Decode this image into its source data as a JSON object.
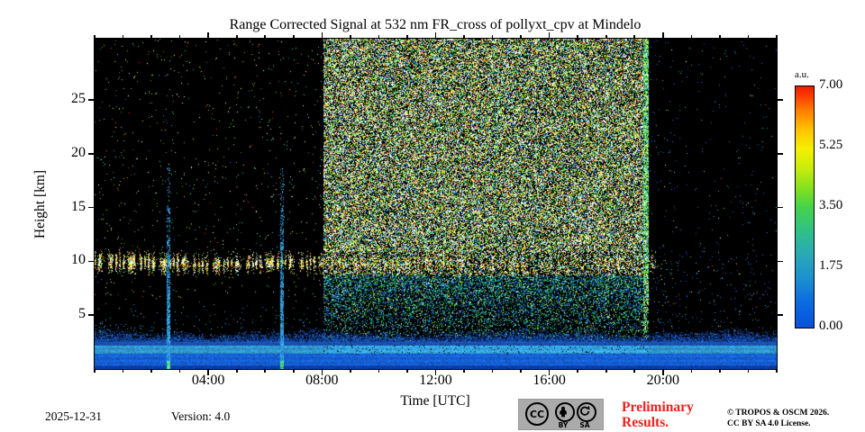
{
  "figure": {
    "footer": {
      "date": "2025-12-31",
      "version": "Version: 4.0",
      "preliminary_line1": "Preliminary",
      "preliminary_line2": "Results.",
      "preliminary_color": "#f11e1e",
      "copyright_line1": "© TROPOS & OSCM 2026.",
      "copyright_line2": "CC BY SA 4.0 License.",
      "license_badge": {
        "cc": "CC",
        "by": "BY",
        "sa": "SA"
      }
    }
  },
  "chart_data": {
    "type": "heatmap",
    "title": "Range Corrected Signal at 532 nm FR_cross of pollyxt_cpv at Mindelo",
    "xlabel": "Time [UTC]",
    "ylabel": "Height [km]",
    "xlim_hours": [
      0,
      24
    ],
    "ylim_km": [
      0,
      30.7
    ],
    "clim": [
      0,
      7
    ],
    "x_ticks": [
      {
        "hour": 4,
        "label": "04:00"
      },
      {
        "hour": 8,
        "label": "08:00"
      },
      {
        "hour": 12,
        "label": "12:00"
      },
      {
        "hour": 16,
        "label": "16:00"
      },
      {
        "hour": 20,
        "label": "20:00"
      }
    ],
    "x_minor_every_hours": 1,
    "y_ticks": [
      {
        "km": 5,
        "label": "5"
      },
      {
        "km": 10,
        "label": "10"
      },
      {
        "km": 15,
        "label": "15"
      },
      {
        "km": 20,
        "label": "20"
      },
      {
        "km": 25,
        "label": "25"
      }
    ],
    "colorbar": {
      "label": "a.u.",
      "ticks": [
        {
          "value": 7.0,
          "label": "7.00"
        },
        {
          "value": 5.25,
          "label": "5.25"
        },
        {
          "value": 3.5,
          "label": "3.50"
        },
        {
          "value": 1.75,
          "label": "1.75"
        },
        {
          "value": 0.0,
          "label": "0.00"
        }
      ],
      "mid_tick_values": [
        1.75,
        3.5,
        5.25
      ],
      "stops": [
        [
          0,
          "#0a50dc"
        ],
        [
          0.1,
          "#0a69e0"
        ],
        [
          0.2,
          "#1b8fd0"
        ],
        [
          0.3,
          "#2aa8b8"
        ],
        [
          0.4,
          "#2ec187"
        ],
        [
          0.5,
          "#45d349"
        ],
        [
          0.58,
          "#86e11c"
        ],
        [
          0.66,
          "#c9ec0e"
        ],
        [
          0.74,
          "#f4f000"
        ],
        [
          0.82,
          "#ffc300"
        ],
        [
          0.9,
          "#ff7e00"
        ],
        [
          0.96,
          "#fa3c00"
        ],
        [
          1,
          "#f01c00"
        ]
      ]
    },
    "features": {
      "daytime_background_noise": {
        "t_start": 8.05,
        "t_end": 19.5,
        "note": "dense sunlight speckle over full column"
      },
      "daytime_edge_fringe": {
        "t_start": 19.3,
        "t_end": 19.5
      },
      "cirrus_band": {
        "h_center_km": 9.8,
        "h_sigma_km": 0.45,
        "t_start": 0,
        "t_end": 19.8,
        "dense_until_hour": 3
      },
      "boundary_layer": {
        "top_km": 2.95,
        "cyan_band_km": [
          1.45,
          2.15
        ]
      },
      "calibration_streaks": [
        {
          "hour": 2.6,
          "top_km": 18.8
        },
        {
          "hour": 6.6,
          "top_km": 18.8
        }
      ],
      "night_noise": {
        "sparse_density": 0.011,
        "post_sunset_blue_until": 20.6
      }
    }
  }
}
